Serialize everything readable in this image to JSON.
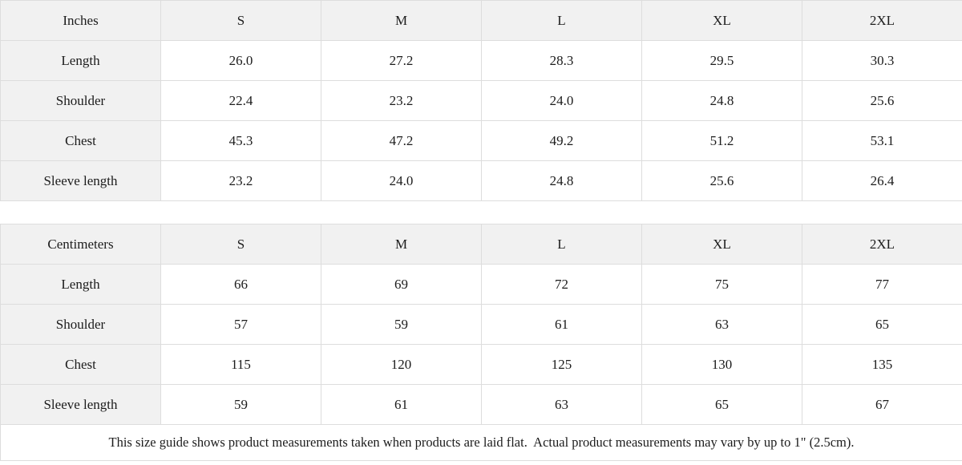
{
  "chart_data": [
    {
      "type": "table",
      "unit": "Inches",
      "sizes": [
        "S",
        "M",
        "L",
        "XL",
        "2XL"
      ],
      "rows": [
        {
          "label": "Length",
          "values": [
            "26.0",
            "27.2",
            "28.3",
            "29.5",
            "30.3"
          ]
        },
        {
          "label": "Shoulder",
          "values": [
            "22.4",
            "23.2",
            "24.0",
            "24.8",
            "25.6"
          ]
        },
        {
          "label": "Chest",
          "values": [
            "45.3",
            "47.2",
            "49.2",
            "51.2",
            "53.1"
          ]
        },
        {
          "label": "Sleeve length",
          "values": [
            "23.2",
            "24.0",
            "24.8",
            "25.6",
            "26.4"
          ]
        }
      ]
    },
    {
      "type": "table",
      "unit": "Centimeters",
      "sizes": [
        "S",
        "M",
        "L",
        "XL",
        "2XL"
      ],
      "rows": [
        {
          "label": "Length",
          "values": [
            "66",
            "69",
            "72",
            "75",
            "77"
          ]
        },
        {
          "label": "Shoulder",
          "values": [
            "57",
            "59",
            "61",
            "63",
            "65"
          ]
        },
        {
          "label": "Chest",
          "values": [
            "115",
            "120",
            "125",
            "130",
            "135"
          ]
        },
        {
          "label": "Sleeve length",
          "values": [
            "59",
            "61",
            "63",
            "65",
            "67"
          ]
        }
      ]
    }
  ],
  "footer": {
    "note": "This size guide shows product measurements taken when products are laid flat.  Actual product measurements may vary by up to 1\" (2.5cm)."
  },
  "colors": {
    "header_bg": "#f1f1f1",
    "border": "#dddddd",
    "text": "#1c1c1c",
    "cell_bg": "#ffffff"
  }
}
